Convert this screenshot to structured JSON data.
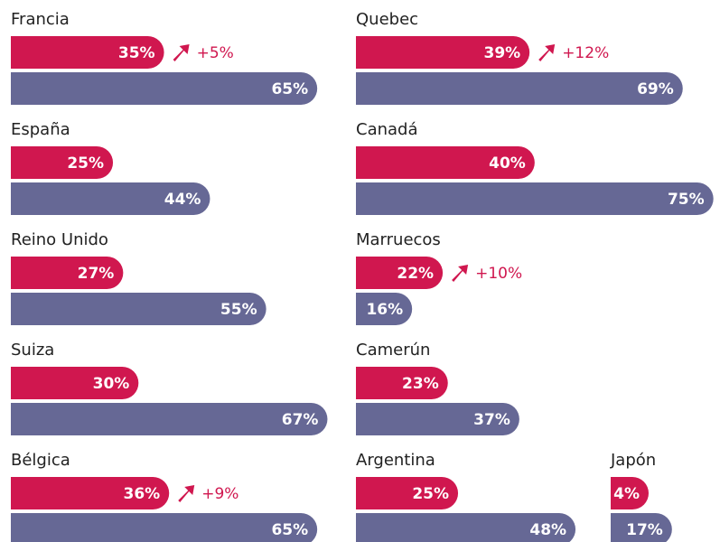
{
  "chart_data": {
    "type": "bar",
    "categories": [
      "Francia",
      "España",
      "Reino Unido",
      "Suiza",
      "Bélgica",
      "Quebec",
      "Canadá",
      "Marruecos",
      "Camerún",
      "Argentina",
      "Japón"
    ],
    "series": [
      {
        "color": "#d0174f",
        "values": [
          35,
          25,
          27,
          30,
          36,
          39,
          40,
          22,
          23,
          25,
          4
        ],
        "value_labels": [
          "35%",
          "25%",
          "27%",
          "30%",
          "36%",
          "39%",
          "40%",
          "22%",
          "23%",
          "25%",
          "4%"
        ]
      },
      {
        "color": "#666895",
        "values": [
          65,
          44,
          55,
          67,
          65,
          69,
          75,
          16,
          37,
          48,
          17
        ],
        "value_labels": [
          "65%",
          "44%",
          "55%",
          "67%",
          "65%",
          "69%",
          "75%",
          "16%",
          "37%",
          "48%",
          "17%"
        ]
      }
    ],
    "change_values": [
      5,
      null,
      null,
      null,
      9,
      12,
      null,
      10,
      null,
      null,
      null
    ],
    "change_labels": [
      "+5%",
      null,
      null,
      null,
      "+9%",
      "+12%",
      null,
      "+10%",
      null,
      null,
      null
    ],
    "xlim": [
      5,
      100
    ]
  }
}
